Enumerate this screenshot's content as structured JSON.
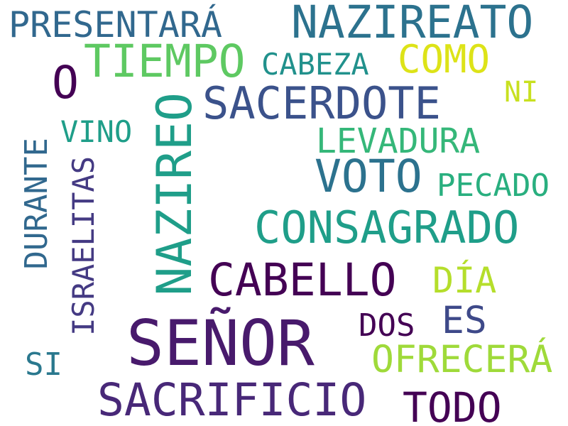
{
  "background_color": "#ffffff",
  "words": {
    "presentara": {
      "text": "PRESENTARÁ",
      "color": "#31688e"
    },
    "nazireato": {
      "text": "NAZIREATO",
      "color": "#2c728e"
    },
    "tiempo": {
      "text": "TIEMPO",
      "color": "#5ec962"
    },
    "cabeza": {
      "text": "CABEZA",
      "color": "#21918c"
    },
    "como": {
      "text": "COMO",
      "color": "#dde318"
    },
    "o": {
      "text": "O",
      "color": "#440154"
    },
    "ni": {
      "text": "NI",
      "color": "#c8e020"
    },
    "sacerdote": {
      "text": "SACERDOTE",
      "color": "#3b528b"
    },
    "nazireo": {
      "text": "NAZIREO",
      "color": "#1f9e89",
      "orientation": "vertical"
    },
    "vino": {
      "text": "VINO",
      "color": "#1f9e89"
    },
    "levadura": {
      "text": "LEVADURA",
      "color": "#35b779"
    },
    "durante": {
      "text": "DURANTE",
      "color": "#31688e",
      "orientation": "vertical"
    },
    "israelitas": {
      "text": "ISRAELITAS",
      "color": "#443a83",
      "orientation": "vertical"
    },
    "voto": {
      "text": "VOTO",
      "color": "#2c728e"
    },
    "pecado": {
      "text": "PECADO",
      "color": "#29af7f"
    },
    "consagrado": {
      "text": "CONSAGRADO",
      "color": "#1f9e89"
    },
    "cabello": {
      "text": "CABELLO",
      "color": "#440154"
    },
    "dia": {
      "text": "DÍA",
      "color": "#b5de2b"
    },
    "es": {
      "text": "ES",
      "color": "#3e4989"
    },
    "dos": {
      "text": "DOS",
      "color": "#440154"
    },
    "senor": {
      "text": "SEÑOR",
      "color": "#481a6c"
    },
    "ofrecera": {
      "text": "OFRECERÁ",
      "color": "#9fda3a"
    },
    "si": {
      "text": "SI",
      "color": "#2a788e"
    },
    "sacrificio": {
      "text": "SACRIFICIO",
      "color": "#482878"
    },
    "todo": {
      "text": "TODO",
      "color": "#440154"
    }
  }
}
